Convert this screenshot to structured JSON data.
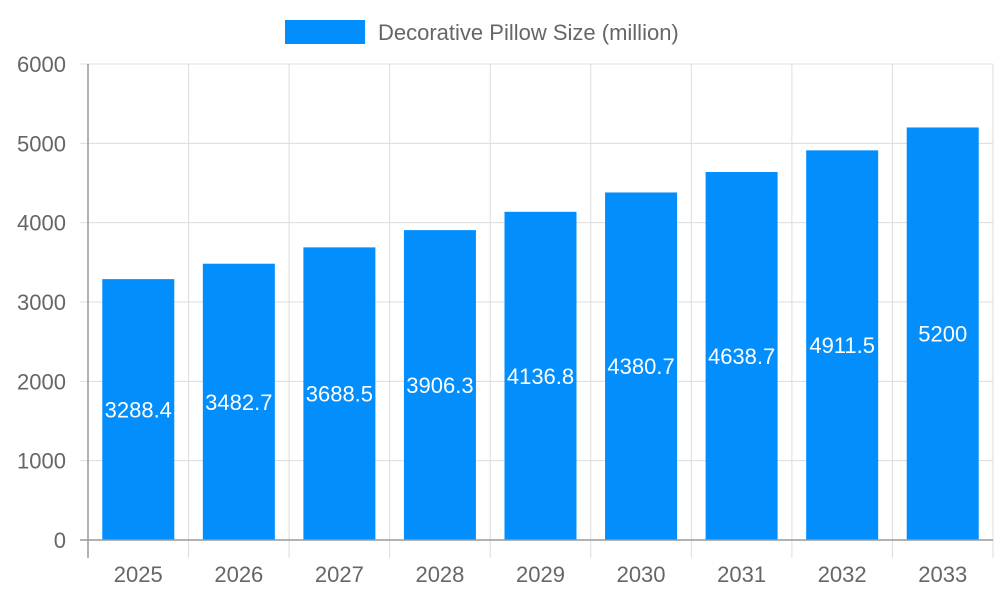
{
  "chart_data": {
    "type": "bar",
    "title": "",
    "xlabel": "",
    "ylabel": "",
    "categories": [
      "2025",
      "2026",
      "2027",
      "2028",
      "2029",
      "2030",
      "2031",
      "2032",
      "2033"
    ],
    "series": [
      {
        "name": "Decorative Pillow Size (million)",
        "values": [
          3288.4,
          3482.7,
          3688.5,
          3906.3,
          4136.8,
          4380.7,
          4638.7,
          4911.5,
          5200
        ],
        "color": "#038efd"
      }
    ],
    "data_labels": [
      "3288.4",
      "3482.7",
      "3688.5",
      "3906.3",
      "4136.8",
      "4380.7",
      "4638.7",
      "4911.5",
      "5200"
    ],
    "ylim": [
      0,
      6000
    ],
    "yticks": [
      "0",
      "1000",
      "2000",
      "3000",
      "4000",
      "5000",
      "6000"
    ],
    "grid": true,
    "legend_position": "top"
  }
}
